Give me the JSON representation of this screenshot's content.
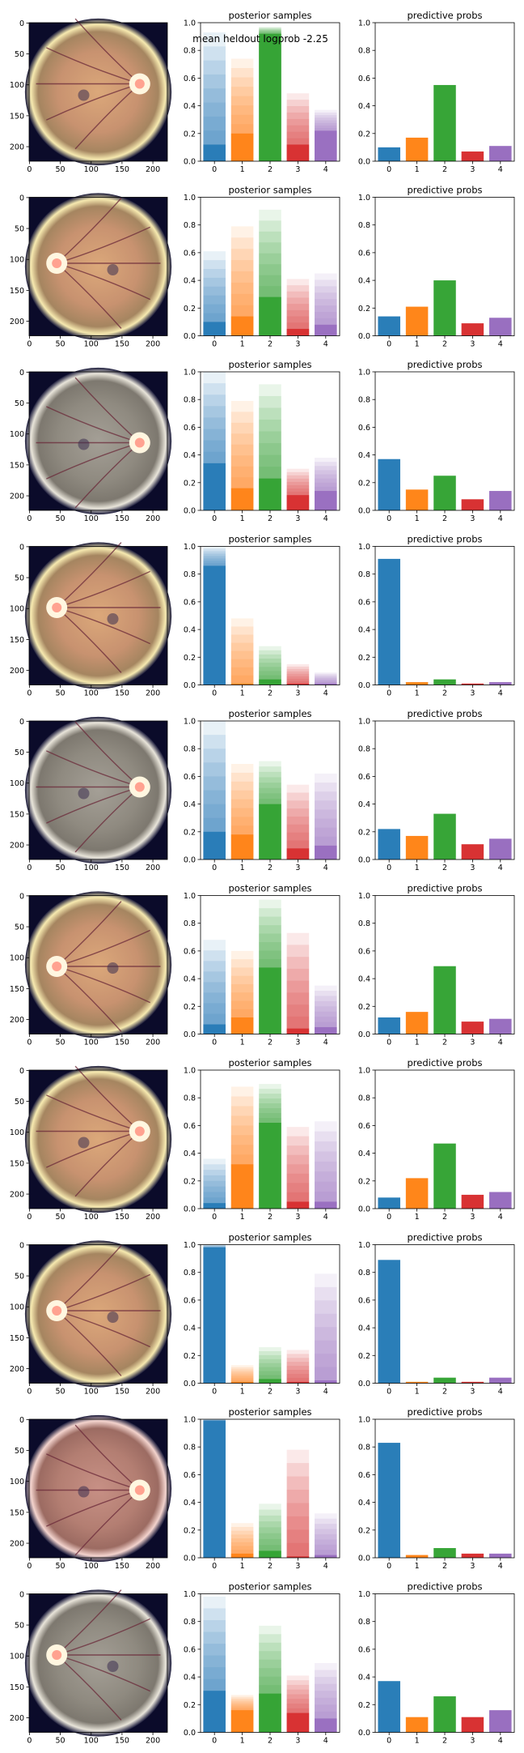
{
  "annotation": "mean heldout logprob -2.25",
  "titles": {
    "posterior": "posterior samples",
    "predictive": "predictive probs"
  },
  "colors": [
    "#1f77b4",
    "#ff7f0e",
    "#2ca02c",
    "#d62728",
    "#9467bd"
  ],
  "image_axes": {
    "x_ticks": [
      "0",
      "50",
      "100",
      "150",
      "200"
    ],
    "y_ticks": [
      "0",
      "50",
      "100",
      "150",
      "200"
    ]
  },
  "chart_data": {
    "type": "bar",
    "categories": [
      "0",
      "1",
      "2",
      "3",
      "4"
    ],
    "ylim": [
      0,
      1.0
    ],
    "y_ticks": [
      "0.0",
      "0.2",
      "0.4",
      "0.6",
      "0.8",
      "1.0"
    ],
    "rows": [
      {
        "fundus": "yellow",
        "posterior_max": [
          0.93,
          0.74,
          0.97,
          0.49,
          0.37
        ],
        "posterior_solid": [
          0.12,
          0.2,
          0.92,
          0.12,
          0.22
        ],
        "predictive": [
          0.1,
          0.17,
          0.55,
          0.07,
          0.11
        ]
      },
      {
        "fundus": "yellow",
        "posterior_max": [
          0.61,
          0.79,
          0.91,
          0.41,
          0.45
        ],
        "posterior_solid": [
          0.1,
          0.14,
          0.28,
          0.05,
          0.08
        ],
        "predictive": [
          0.14,
          0.21,
          0.4,
          0.09,
          0.13
        ]
      },
      {
        "fundus": "grey",
        "posterior_max": [
          1.0,
          0.79,
          0.91,
          0.3,
          0.38
        ],
        "posterior_solid": [
          0.34,
          0.16,
          0.23,
          0.11,
          0.14
        ],
        "predictive": [
          0.37,
          0.15,
          0.25,
          0.08,
          0.14
        ]
      },
      {
        "fundus": "yellow",
        "posterior_max": [
          1.0,
          0.48,
          0.28,
          0.15,
          0.09
        ],
        "posterior_solid": [
          0.86,
          0.01,
          0.04,
          0.01,
          0.01
        ],
        "predictive": [
          0.91,
          0.02,
          0.04,
          0.01,
          0.02
        ]
      },
      {
        "fundus": "grey",
        "posterior_max": [
          1.0,
          0.69,
          0.71,
          0.54,
          0.62
        ],
        "posterior_solid": [
          0.2,
          0.18,
          0.4,
          0.08,
          0.1
        ],
        "predictive": [
          0.22,
          0.17,
          0.33,
          0.11,
          0.15
        ]
      },
      {
        "fundus": "yellow",
        "posterior_max": [
          0.68,
          0.6,
          0.97,
          0.73,
          0.35
        ],
        "posterior_solid": [
          0.07,
          0.12,
          0.48,
          0.04,
          0.05
        ],
        "predictive": [
          0.12,
          0.16,
          0.49,
          0.09,
          0.11
        ]
      },
      {
        "fundus": "yellow",
        "posterior_max": [
          0.36,
          0.88,
          0.9,
          0.59,
          0.63
        ],
        "posterior_solid": [
          0.04,
          0.32,
          0.62,
          0.05,
          0.05
        ],
        "predictive": [
          0.08,
          0.22,
          0.47,
          0.1,
          0.12
        ]
      },
      {
        "fundus": "yellow",
        "posterior_max": [
          1.0,
          0.13,
          0.26,
          0.24,
          0.79
        ],
        "posterior_solid": [
          0.98,
          0.01,
          0.03,
          0.01,
          0.02
        ],
        "predictive": [
          0.89,
          0.01,
          0.04,
          0.01,
          0.04
        ]
      },
      {
        "fundus": "pink",
        "posterior_max": [
          1.0,
          0.25,
          0.39,
          0.78,
          0.32
        ],
        "posterior_solid": [
          0.99,
          0.03,
          0.05,
          0.01,
          0.02
        ],
        "predictive": [
          0.83,
          0.02,
          0.07,
          0.03,
          0.03
        ]
      },
      {
        "fundus": "grey",
        "posterior_max": [
          0.98,
          0.27,
          0.77,
          0.41,
          0.5
        ],
        "posterior_solid": [
          0.3,
          0.16,
          0.28,
          0.14,
          0.1
        ],
        "predictive": [
          0.37,
          0.11,
          0.26,
          0.11,
          0.16
        ]
      }
    ]
  }
}
